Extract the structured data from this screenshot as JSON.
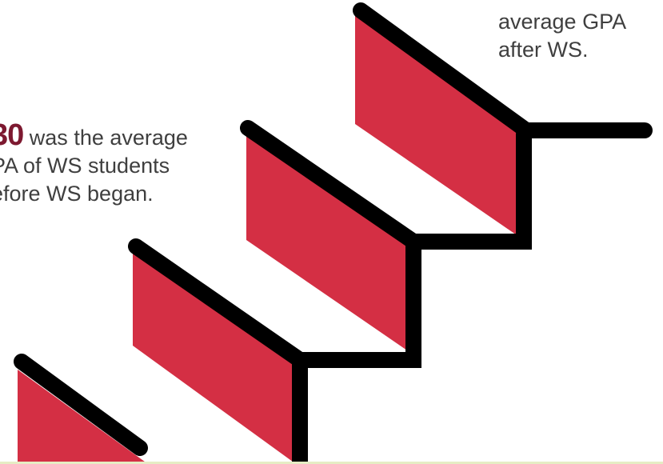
{
  "left_caption": {
    "value": "30",
    "line1_rest": "was the average",
    "line2": "PA of WS students",
    "line3": "efore WS began."
  },
  "right_caption": {
    "line1": "average GPA",
    "line2": "after WS."
  },
  "colors": {
    "riser": "#d42f44",
    "tread": "#000000",
    "number": "#7d1930",
    "text": "#3f3f3f",
    "strip": "#e6ecc4"
  }
}
